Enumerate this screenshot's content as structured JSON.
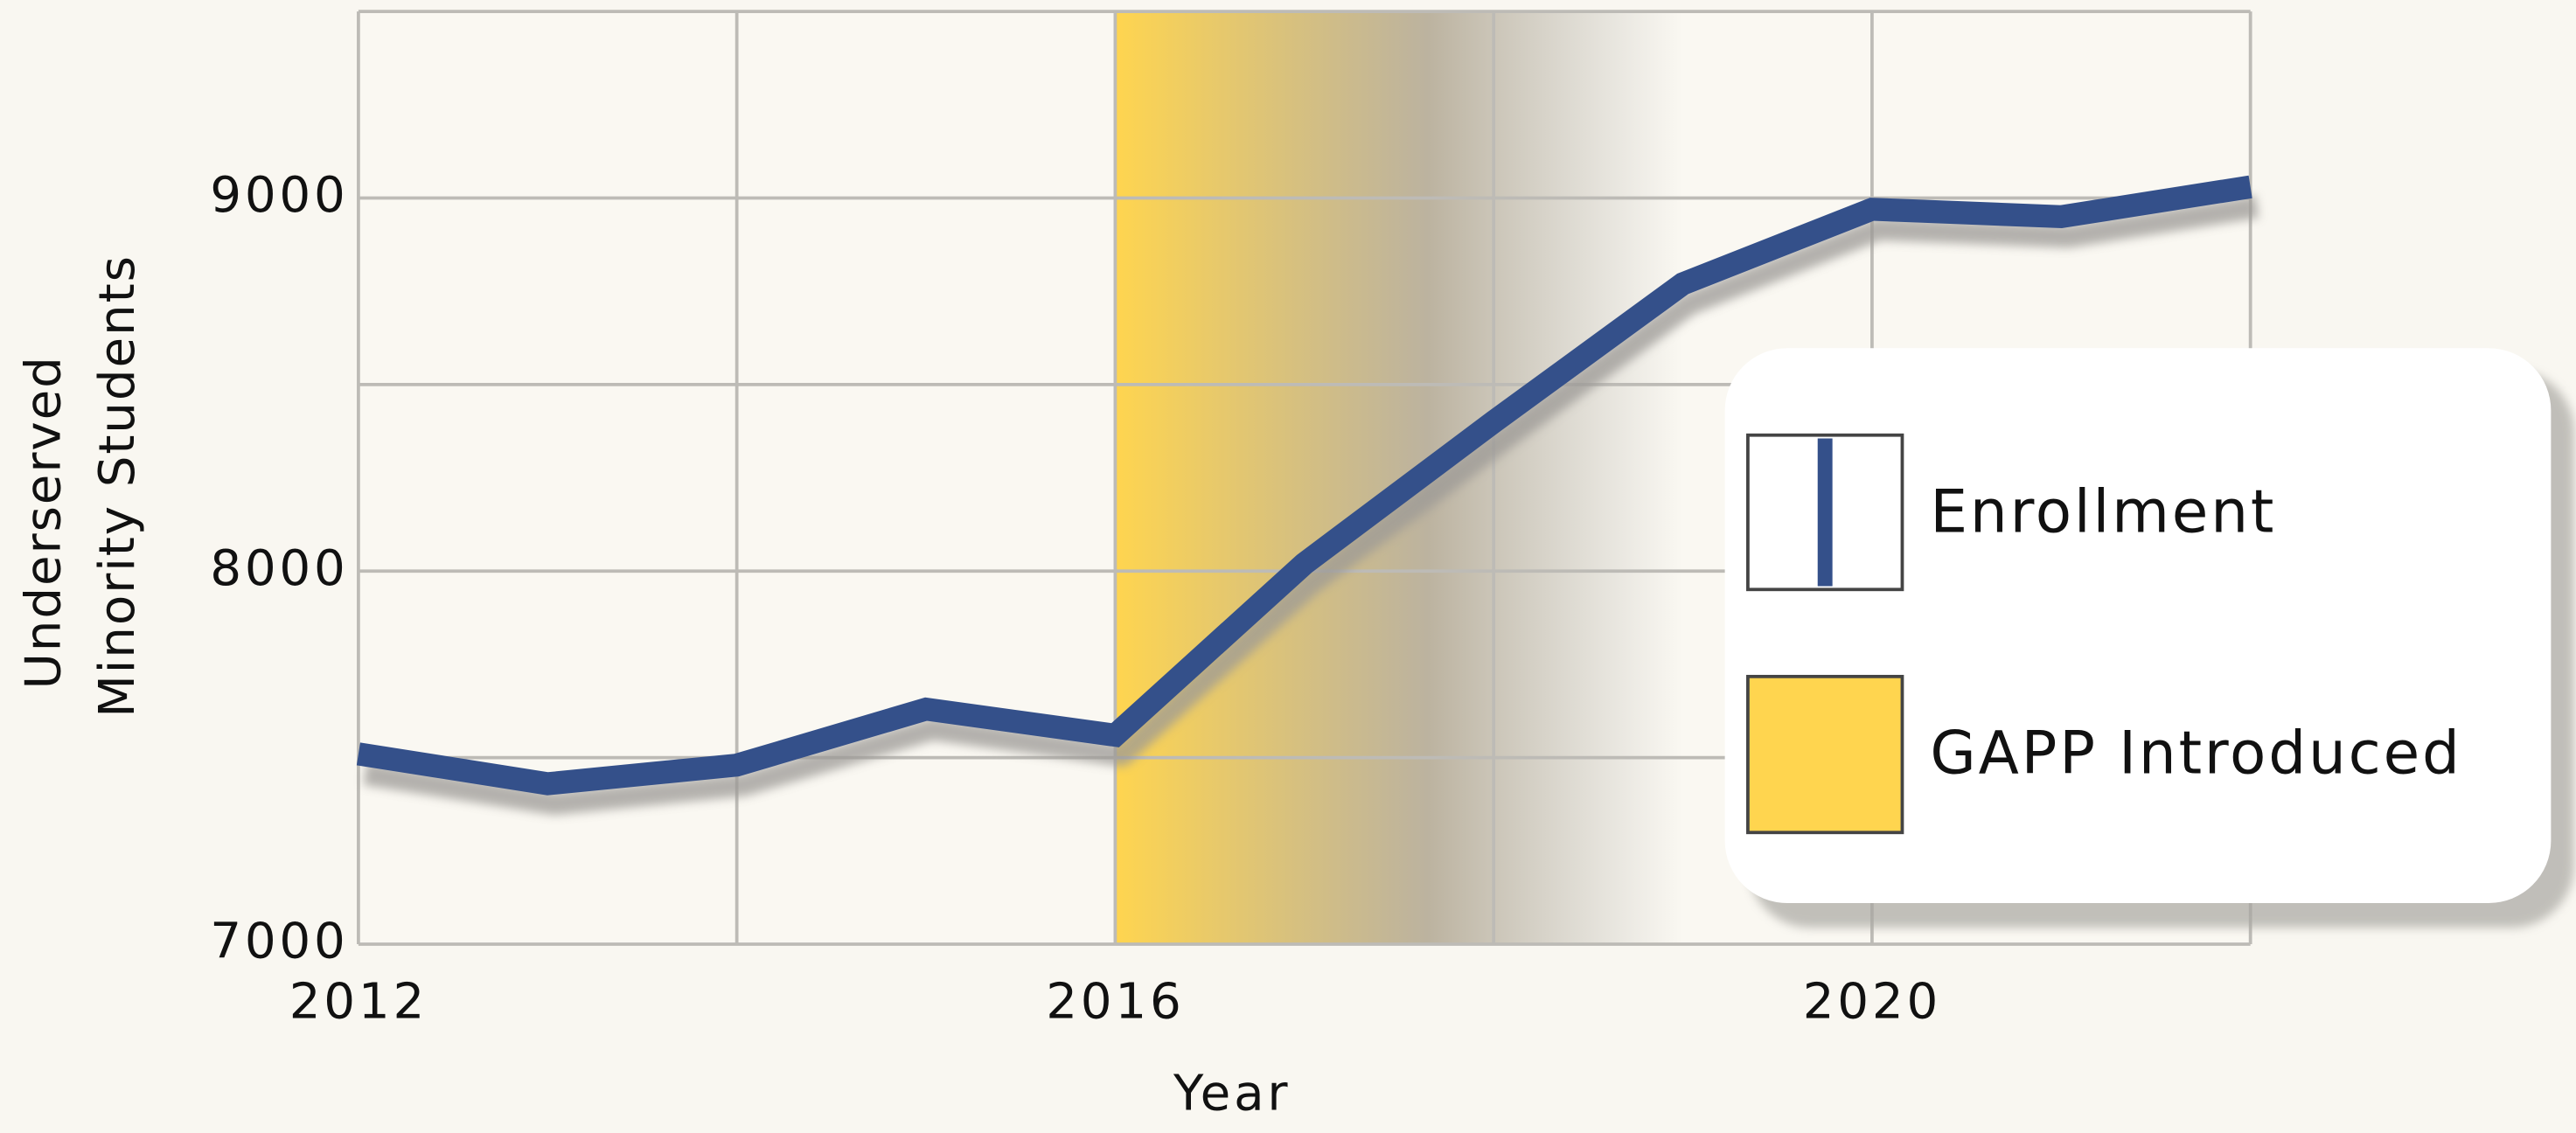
{
  "chart_data": {
    "type": "line",
    "x_label": "Year",
    "y_label": [
      "Underserved",
      "Minority Students"
    ],
    "x": [
      2012,
      2013,
      2014,
      2015,
      2016,
      2017,
      2018,
      2019,
      2020,
      2021,
      2022
    ],
    "series": [
      {
        "name": "Enrollment",
        "color": "#34508a",
        "values": [
          7510,
          7430,
          7480,
          7630,
          7560,
          8020,
          8400,
          8770,
          8970,
          8950,
          9030
        ]
      }
    ],
    "shade": {
      "name": "GAPP Introduced",
      "x": [
        2016,
        2019
      ],
      "color": "#ffd54f"
    },
    "xlim": [
      2012,
      2022
    ],
    "ylim": [
      7000,
      9500
    ],
    "xticks": [
      2012,
      2016,
      2020
    ],
    "yticks": [
      7000,
      8000,
      9000
    ],
    "xgrid": [
      2012,
      2014,
      2016,
      2018,
      2020,
      2022
    ],
    "ygrid": [
      7000,
      7500,
      8000,
      8500,
      9000,
      9500
    ],
    "grid": true,
    "legend": "right"
  }
}
